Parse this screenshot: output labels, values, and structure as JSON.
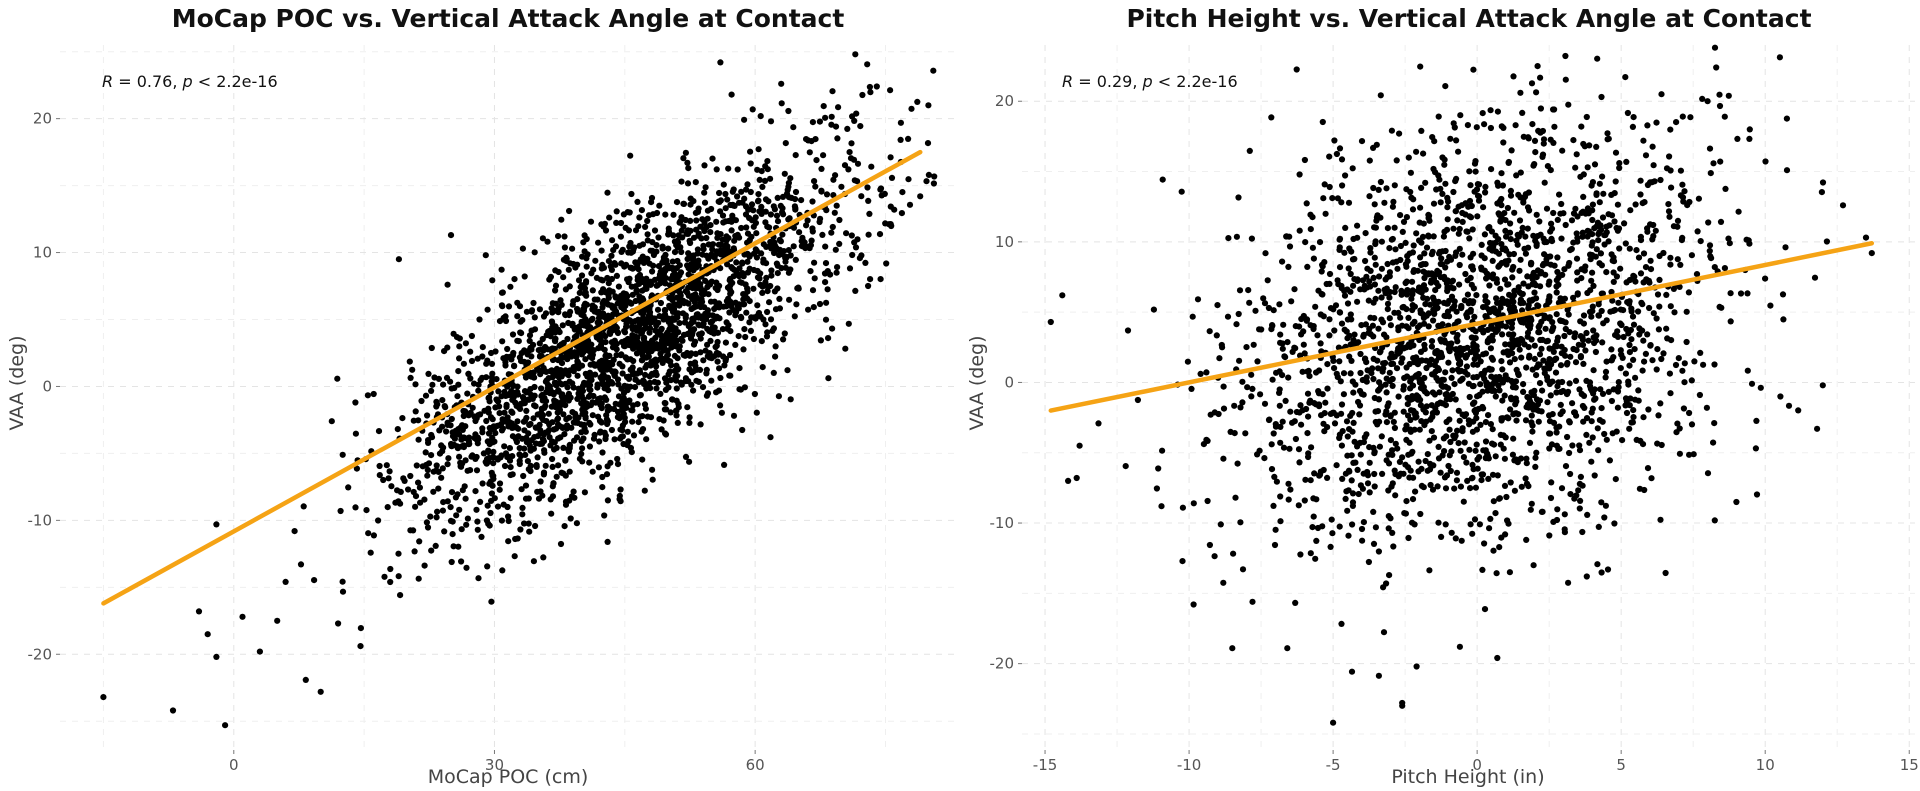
{
  "colors": {
    "points": "#000000",
    "fit_line": "#F5A315",
    "grid": "#e4e4e4"
  },
  "chart_data": [
    {
      "type": "scatter",
      "title": "MoCap POC vs. Vertical Attack Angle at Contact",
      "xlabel": "MoCap POC (cm)",
      "ylabel": "VAA (deg)",
      "xlim": [
        -20,
        83
      ],
      "ylim": [
        -27,
        25.5
      ],
      "xticks": [
        0,
        30,
        60
      ],
      "yticks": [
        -20,
        -10,
        0,
        10,
        20
      ],
      "grid": true,
      "annotation": {
        "r_label": "R",
        "r_text": " = 0.76, ",
        "p_label": "p",
        "p_text": " < 2.2e-16"
      },
      "fit_line": {
        "x": [
          -15,
          79
        ],
        "y": [
          -16.2,
          17.5
        ]
      },
      "point_cloud": {
        "n": 2600,
        "corr": 0.76,
        "x_mean": 45,
        "x_sd": 13,
        "y_mean": 3.5,
        "y_sd": 6.8,
        "seed": 7
      },
      "points": [
        [
          -15,
          -23.2
        ],
        [
          -7,
          -24.2
        ],
        [
          -1,
          -25.3
        ],
        [
          56,
          24.2
        ],
        [
          63,
          22.6
        ],
        [
          74,
          22.4
        ],
        [
          10,
          -22.8
        ],
        [
          -2,
          -20.2
        ],
        [
          3,
          -19.8
        ],
        [
          -4,
          -16.8
        ],
        [
          -3,
          -18.5
        ],
        [
          1,
          -17.2
        ],
        [
          5,
          -17.5
        ],
        [
          -2,
          -10.3
        ],
        [
          7,
          -10.8
        ],
        [
          12,
          -17.7
        ],
        [
          18,
          -14.6
        ],
        [
          29,
          9.8
        ],
        [
          19,
          9.5
        ],
        [
          25,
          11.3
        ],
        [
          14,
          -1.2
        ],
        [
          80,
          15.8
        ],
        [
          79,
          14.2
        ],
        [
          73,
          7.5
        ],
        [
          76,
          13.2
        ]
      ]
    },
    {
      "type": "scatter",
      "title": "Pitch Height vs. Vertical Attack Angle at Contact",
      "xlabel": "Pitch Height (in)",
      "ylabel": "VAA (deg)",
      "xlim": [
        -15.8,
        15.2
      ],
      "ylim": [
        -26,
        24
      ],
      "xticks": [
        -15,
        -10,
        -5,
        0,
        5,
        10,
        15
      ],
      "yticks": [
        -20,
        -10,
        0,
        10,
        20
      ],
      "grid": true,
      "annotation": {
        "r_label": "R",
        "r_text": " = 0.29, ",
        "p_label": "p",
        "p_text": " < 2.2e-16"
      },
      "fit_line": {
        "x": [
          -14.8,
          13.7
        ],
        "y": [
          -2.0,
          9.9
        ]
      },
      "point_cloud": {
        "n": 2400,
        "corr": 0.29,
        "x_mean": 0,
        "x_sd": 4.2,
        "y_mean": 3.5,
        "y_sd": 7.2,
        "seed": 13
      },
      "points": [
        [
          -14.8,
          4.3
        ],
        [
          -14.4,
          6.2
        ],
        [
          -14.2,
          -7.0
        ],
        [
          -13.9,
          -6.8
        ],
        [
          -13.8,
          -4.5
        ],
        [
          -2.6,
          -23.0
        ],
        [
          -2.6,
          -22.8
        ],
        [
          -5.0,
          -24.2
        ],
        [
          -2.1,
          -20.2
        ],
        [
          2.1,
          22.5
        ],
        [
          1.5,
          20.6
        ],
        [
          8.3,
          22.4
        ],
        [
          6.4,
          20.5
        ],
        [
          8.0,
          20.0
        ],
        [
          13.7,
          9.2
        ],
        [
          12.0,
          -0.2
        ],
        [
          11.8,
          -3.3
        ],
        [
          9.0,
          -8.5
        ],
        [
          13.5,
          10.3
        ],
        [
          12.7,
          12.6
        ],
        [
          -8.5,
          -18.9
        ],
        [
          -7.8,
          -15.6
        ],
        [
          -0.6,
          -18.8
        ],
        [
          0.7,
          -19.6
        ]
      ]
    }
  ]
}
